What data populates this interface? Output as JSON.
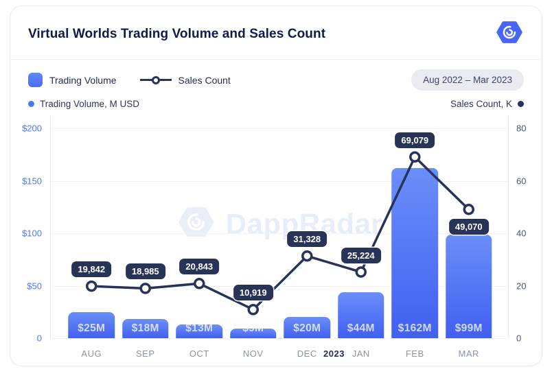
{
  "header": {
    "title": "Virtual Worlds Trading Volume and Sales Count"
  },
  "legend": {
    "trading_volume": "Trading Volume",
    "sales_count": "Sales Count",
    "period": "Aug 2022 – Mar 2023"
  },
  "axis_captions": {
    "left": "Trading Volume, M USD",
    "right": "Sales Count, K"
  },
  "watermark": "DappRadar",
  "colors": {
    "accent_blue": "#4766F6",
    "bar_top": "#6B8EF9",
    "bar_bottom": "#4060F0",
    "line_navy": "#27335A",
    "left_tick": "#4C79F5",
    "right_tick": "#4A5570"
  },
  "chart_data": {
    "type": "bar+line",
    "title": "Virtual Worlds Trading Volume and Sales Count",
    "categories": [
      "AUG",
      "SEP",
      "OCT",
      "NOV",
      "DEC",
      "JAN",
      "FEB",
      "MAR"
    ],
    "year_divider": {
      "label": "2023",
      "after_index": 4
    },
    "series": [
      {
        "name": "Trading Volume",
        "type": "bar",
        "axis": "left",
        "unit": "M USD",
        "values": [
          25,
          18,
          13,
          9,
          20,
          44,
          162,
          99
        ],
        "labels": [
          "$25M",
          "$18M",
          "$13M",
          "$9M",
          "$20M",
          "$44M",
          "$162M",
          "$99M"
        ]
      },
      {
        "name": "Sales Count",
        "type": "line",
        "axis": "right",
        "unit": "K",
        "values": [
          19.842,
          18.985,
          20.843,
          10.919,
          31.328,
          25.224,
          69.079,
          49.07
        ],
        "labels": [
          "19,842",
          "18,985",
          "20,843",
          "10,919",
          "31,328",
          "25,224",
          "69,079",
          "49,070"
        ],
        "label_below": [
          false,
          false,
          false,
          false,
          false,
          false,
          false,
          true
        ]
      }
    ],
    "left_axis": {
      "ticks": [
        "$200",
        "$150",
        "$100",
        "$50",
        "0"
      ],
      "min": 0,
      "max": 200
    },
    "right_axis": {
      "ticks": [
        "80",
        "60",
        "40",
        "20",
        "0"
      ],
      "min": 0,
      "max": 80
    },
    "grid": true,
    "legend_position": "top-left"
  }
}
